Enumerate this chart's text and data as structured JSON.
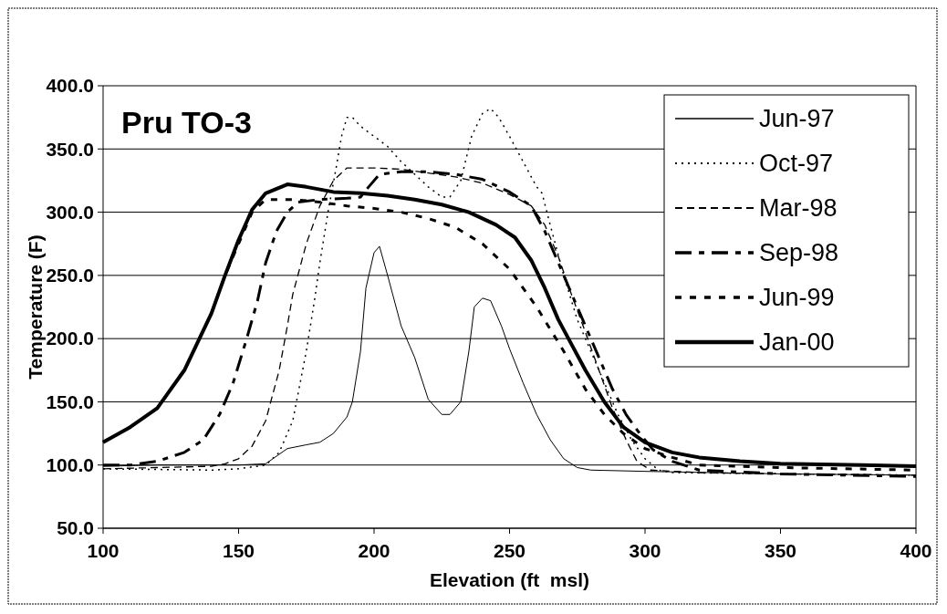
{
  "chart_data": {
    "type": "line",
    "title": "Pru TO-3",
    "xlabel": "Elevation (ft  msl)",
    "ylabel": "Temperature (F)",
    "xlim": [
      100,
      400
    ],
    "xticks": [
      100,
      150,
      200,
      250,
      300,
      350,
      400
    ],
    "ylim": [
      50,
      400
    ],
    "yticks": [
      {
        "value": 50,
        "label": "50.0"
      },
      {
        "value": 100,
        "label": "100.0"
      },
      {
        "value": 150,
        "label": "150.0"
      },
      {
        "value": 200,
        "label": "200.0"
      },
      {
        "value": 250,
        "label": "250.0"
      },
      {
        "value": 300,
        "label": "300.0"
      },
      {
        "value": 350,
        "label": "350.0"
      },
      {
        "value": 400,
        "label": "400.0"
      }
    ],
    "grid": "y",
    "legend": "top right",
    "marker": "none",
    "series": [
      {
        "name": "Jun-97",
        "color": "#000000",
        "line_style": "solid",
        "x": [
          100,
          120,
          150,
          160,
          168,
          175,
          180,
          185,
          190,
          192,
          195,
          197,
          200,
          202,
          205,
          210,
          215,
          220,
          225,
          228,
          232,
          235,
          237,
          240,
          243,
          247,
          250,
          255,
          260,
          265,
          270,
          275,
          280,
          300,
          350,
          400
        ],
        "values": [
          99,
          100,
          100,
          101,
          113,
          116,
          118,
          125,
          138,
          150,
          190,
          240,
          268,
          273,
          250,
          210,
          185,
          152,
          140,
          140,
          150,
          190,
          225,
          232,
          230,
          210,
          192,
          165,
          140,
          120,
          105,
          98,
          96,
          95,
          93,
          92
        ]
      },
      {
        "name": "Oct-97",
        "color": "#000000",
        "line_style": "dotted",
        "x": [
          100,
          140,
          150,
          160,
          165,
          170,
          175,
          178,
          180,
          183,
          186,
          188,
          190,
          192,
          195,
          200,
          205,
          210,
          215,
          220,
          225,
          228,
          232,
          236,
          240,
          243,
          246,
          250,
          255,
          260,
          262,
          265,
          270,
          275,
          280,
          285,
          290,
          295,
          300,
          305,
          310,
          350,
          400
        ],
        "values": [
          97,
          96,
          97,
          100,
          110,
          135,
          190,
          230,
          260,
          300,
          335,
          360,
          375,
          375,
          368,
          360,
          352,
          340,
          330,
          320,
          312,
          312,
          325,
          360,
          378,
          382,
          375,
          360,
          340,
          320,
          315,
          290,
          250,
          215,
          190,
          165,
          140,
          120,
          105,
          96,
          94,
          93,
          92
        ]
      },
      {
        "name": "Mar-98",
        "color": "#000000",
        "line_style": "dashed",
        "x": [
          100,
          120,
          140,
          145,
          150,
          155,
          160,
          165,
          168,
          170,
          175,
          180,
          185,
          190,
          200,
          210,
          220,
          230,
          240,
          250,
          258,
          263,
          268,
          272,
          278,
          283,
          288,
          293,
          297,
          302,
          320,
          350,
          400
        ],
        "values": [
          97,
          98,
          99,
          101,
          105,
          115,
          135,
          175,
          210,
          235,
          275,
          305,
          325,
          335,
          335,
          334,
          331,
          328,
          323,
          314,
          305,
          290,
          265,
          240,
          205,
          175,
          145,
          120,
          103,
          96,
          94,
          93,
          92
        ]
      },
      {
        "name": "Sep-98",
        "color": "#000000",
        "line_style": "dashed",
        "x": [
          100,
          110,
          120,
          130,
          137,
          143,
          148,
          153,
          157,
          160,
          164,
          168,
          172,
          180,
          190,
          195,
          198,
          202,
          210,
          220,
          230,
          240,
          250,
          258,
          263,
          268,
          273,
          278,
          283,
          288,
          293,
          298,
          303,
          310,
          320,
          350,
          400
        ],
        "values": [
          100,
          100,
          103,
          110,
          120,
          140,
          165,
          200,
          230,
          260,
          285,
          300,
          308,
          310,
          311,
          312,
          320,
          330,
          332,
          332,
          330,
          326,
          316,
          305,
          285,
          260,
          235,
          210,
          185,
          160,
          140,
          125,
          112,
          103,
          96,
          93,
          91
        ]
      },
      {
        "name": "Jun-99",
        "color": "#000000",
        "line_style": "dashed",
        "x": [
          100,
          110,
          120,
          130,
          140,
          145,
          150,
          155,
          160,
          170,
          180,
          190,
          200,
          210,
          220,
          230,
          240,
          250,
          260,
          270,
          278,
          285,
          292,
          300,
          310,
          320,
          350,
          400
        ],
        "values": [
          118,
          130,
          145,
          175,
          220,
          250,
          275,
          300,
          310,
          310,
          308,
          305,
          303,
          300,
          295,
          288,
          275,
          255,
          225,
          190,
          160,
          140,
          125,
          113,
          106,
          100,
          98,
          96
        ]
      },
      {
        "name": "Jan-00",
        "color": "#000000",
        "line_style": "solid",
        "x": [
          100,
          110,
          120,
          130,
          140,
          145,
          150,
          155,
          160,
          168,
          175,
          185,
          195,
          205,
          215,
          225,
          235,
          245,
          252,
          258,
          263,
          268,
          273,
          278,
          285,
          292,
          300,
          310,
          320,
          335,
          350,
          380,
          400
        ],
        "values": [
          118,
          130,
          145,
          175,
          220,
          250,
          278,
          302,
          315,
          322,
          320,
          316,
          315,
          313,
          310,
          306,
          300,
          290,
          280,
          262,
          240,
          215,
          195,
          175,
          150,
          130,
          118,
          110,
          106,
          103,
          101,
          100,
          99
        ]
      }
    ]
  }
}
